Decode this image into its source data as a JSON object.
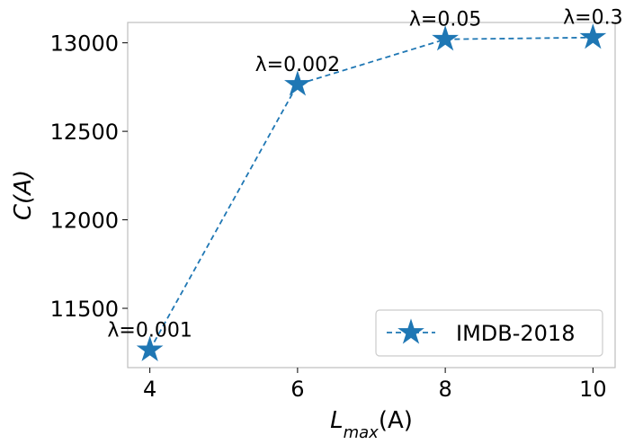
{
  "chart_data": {
    "type": "line",
    "xlabel": {
      "base": "L",
      "sub": "max",
      "suffix": "(A)"
    },
    "ylabel": "C(A)",
    "x": [
      4,
      6,
      8,
      10
    ],
    "xticks": [
      4,
      6,
      8,
      10
    ],
    "xlim": [
      3.7,
      10.3
    ],
    "yticks": [
      11500,
      12000,
      12500,
      13000
    ],
    "ylim": [
      11165,
      13115
    ],
    "grid": false,
    "legend_position": "lower-right",
    "series": [
      {
        "name": "IMDB-2018",
        "values": [
          11265,
          12765,
          13020,
          13030
        ],
        "color": "#1f77b4",
        "line_style": "dashed",
        "marker": "star"
      }
    ],
    "annotations": [
      "λ=0.001",
      "λ=0.002",
      "λ=0.05",
      "λ=0.3"
    ]
  }
}
